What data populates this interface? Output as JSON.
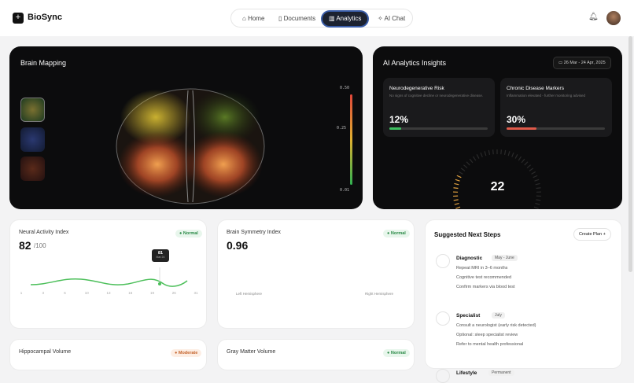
{
  "header": {
    "brand": "BioSync",
    "nav": [
      "Home",
      "Documents",
      "Analytics",
      "AI Chat"
    ]
  },
  "brain_mapping": {
    "title": "Brain Mapping",
    "scale": [
      "0.50",
      "0.25",
      "0.01"
    ]
  },
  "insights": {
    "title": "AI Analytics Insights",
    "date": "26 Mar - 24 Apr, 2025",
    "cards": [
      {
        "title": "Neurodegenerative Risk",
        "text": "No signs of cognitive decline or neurodegenerative disease.",
        "value": "12%"
      },
      {
        "title": "Chronic Disease Markers",
        "text": "Inflammation elevated - further monitoring advised",
        "value": "30%"
      }
    ],
    "gauge": "22"
  },
  "neural": {
    "title": "Neural Activity Index",
    "badge": "Normal",
    "value": "82",
    "max": "/100",
    "tooltip": "81",
    "tooltip_date": "Mar 24",
    "x": [
      "1",
      "3",
      "6",
      "10",
      "13",
      "16",
      "19",
      "26",
      "31"
    ]
  },
  "symmetry": {
    "title": "Brain Symmetry Index",
    "badge": "Normal",
    "value": "0.96",
    "left": "Left Hemisphere",
    "right": "Right Hemisphere"
  },
  "steps": {
    "title": "Suggested Next Steps",
    "button": "Create Plan",
    "groups": [
      {
        "name": "Diagnostic",
        "tag": "May - June",
        "items": [
          "Repeat MRI in 3–6 months",
          "Cognitive test recommended",
          "Confirm markers via blood test"
        ]
      },
      {
        "name": "Specialist",
        "tag": "July",
        "items": [
          "Consult a neurologist (early risk detected)",
          "Optional: sleep specialist review",
          "Refer to mental health professional"
        ]
      },
      {
        "name": "Lifestyle",
        "tag": "Permanent",
        "items": []
      }
    ]
  },
  "hippocampal": {
    "title": "Hippocampal Volume",
    "badge": "Moderate"
  },
  "gray": {
    "title": "Gray Matter Volume",
    "badge": "Normal"
  }
}
